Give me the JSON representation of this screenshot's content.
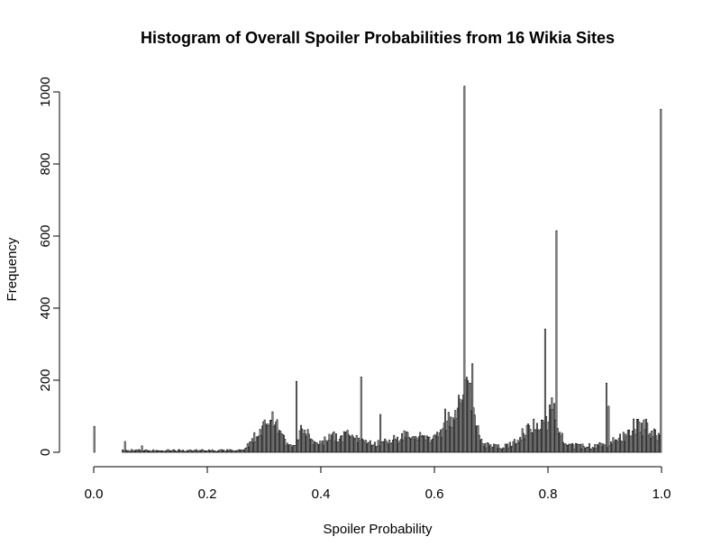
{
  "chart_data": {
    "type": "bar",
    "title": "Histogram of Overall Spoiler Probabilities from 16 Wikia Sites",
    "xlabel": "Spoiler Probability",
    "ylabel": "Frequency",
    "xlim": [
      0.0,
      1.0
    ],
    "ylim": [
      0,
      1000
    ],
    "x_ticks": [
      "0.0",
      "0.2",
      "0.4",
      "0.6",
      "0.8",
      "1.0"
    ],
    "y_ticks": [
      "0",
      "200",
      "400",
      "600",
      "800",
      "1000"
    ],
    "grid": false,
    "bin_width": 0.002,
    "peaks": [
      {
        "x": 0.0,
        "y": 72
      },
      {
        "x": 0.054,
        "y": 30
      },
      {
        "x": 0.086,
        "y": 18
      },
      {
        "x": 0.356,
        "y": 197
      },
      {
        "x": 0.472,
        "y": 209
      },
      {
        "x": 0.504,
        "y": 105
      },
      {
        "x": 0.618,
        "y": 120
      },
      {
        "x": 0.652,
        "y": 1016
      },
      {
        "x": 0.666,
        "y": 246
      },
      {
        "x": 0.794,
        "y": 342
      },
      {
        "x": 0.816,
        "y": 615
      },
      {
        "x": 0.902,
        "y": 192
      },
      {
        "x": 0.906,
        "y": 128
      },
      {
        "x": 0.998,
        "y": 952
      }
    ],
    "clusters": [
      {
        "center": 0.3,
        "height": 60,
        "spread": 0.015
      },
      {
        "center": 0.32,
        "height": 80,
        "spread": 0.01
      },
      {
        "center": 0.37,
        "height": 75,
        "spread": 0.008
      },
      {
        "center": 0.44,
        "height": 40,
        "spread": 0.03
      },
      {
        "center": 0.56,
        "height": 45,
        "spread": 0.03
      },
      {
        "center": 0.64,
        "height": 110,
        "spread": 0.02
      },
      {
        "center": 0.66,
        "height": 170,
        "spread": 0.01
      },
      {
        "center": 0.78,
        "height": 95,
        "spread": 0.02
      },
      {
        "center": 0.81,
        "height": 140,
        "spread": 0.008
      },
      {
        "center": 0.96,
        "height": 85,
        "spread": 0.025
      }
    ]
  }
}
